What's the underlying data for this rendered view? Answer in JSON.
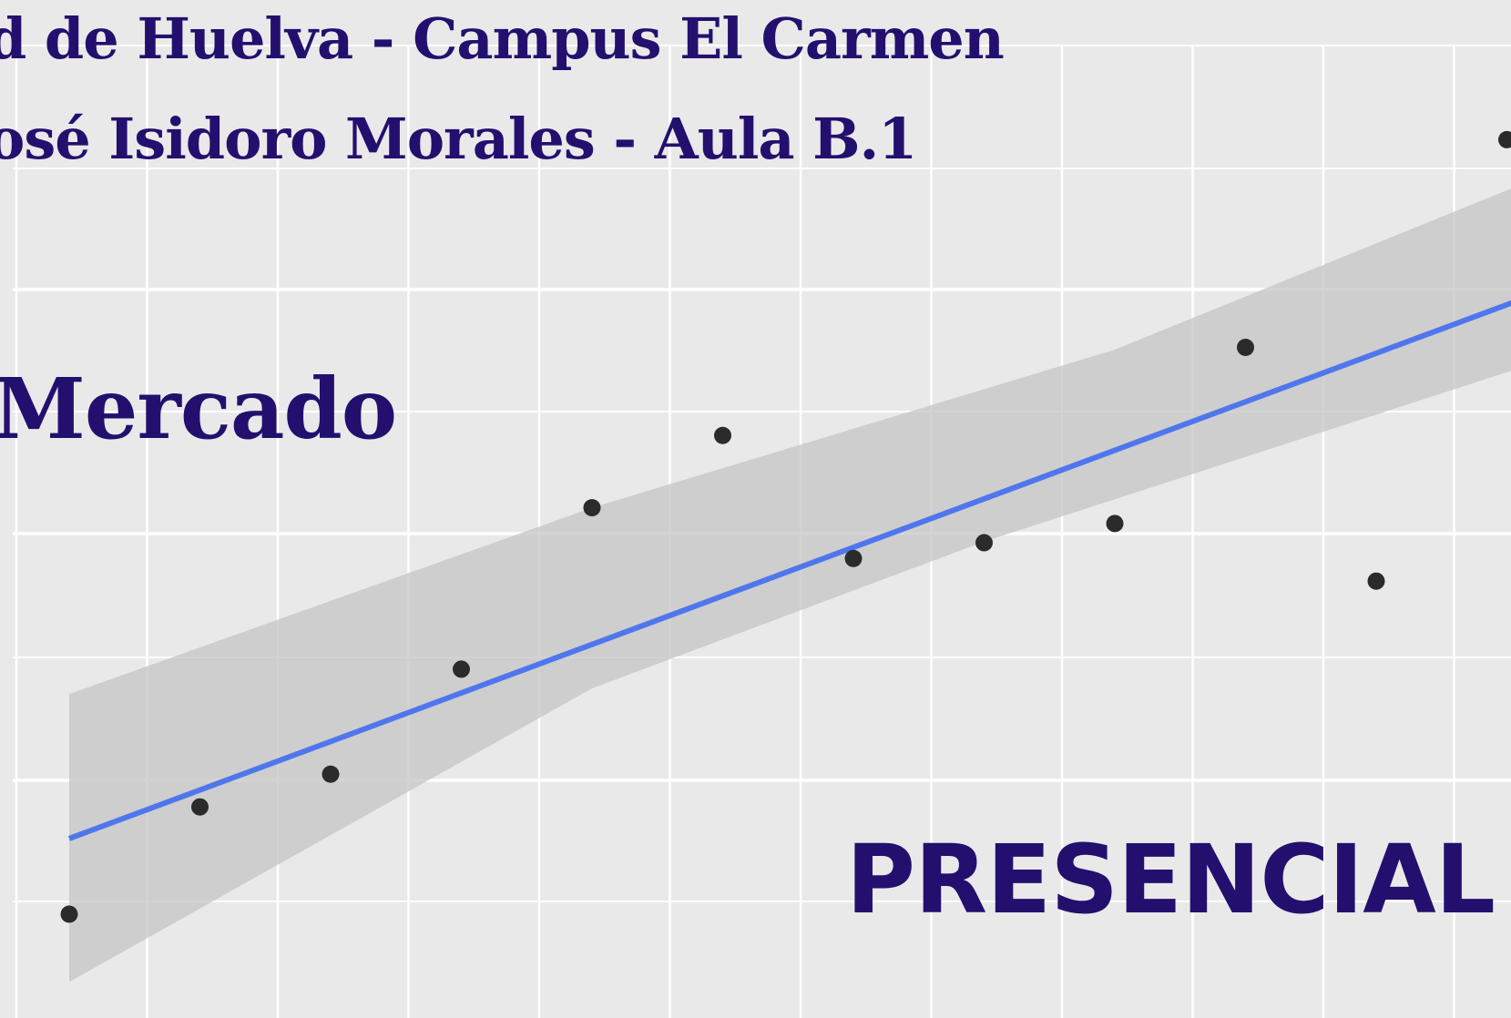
{
  "header": {
    "line1": "d de Huelva - Campus El Carmen",
    "line2": "osé Isidoro Morales - Aula B.1"
  },
  "topic": "Mercado",
  "mode": "PRESENCIAL",
  "colors": {
    "text": "#23106e",
    "fit_line": "#5076ee",
    "confidence_band": "#c4c4c4",
    "points": "#2b2b2b",
    "background": "#e9e9ea",
    "grid": "#ffffff"
  },
  "chart_data": {
    "type": "scatter",
    "x": [
      0,
      1,
      2,
      3,
      4,
      5,
      6,
      7,
      8,
      9,
      10,
      11
    ],
    "values": [
      0.0,
      0.95,
      1.24,
      2.17,
      3.6,
      4.24,
      3.15,
      3.29,
      3.46,
      5.02,
      2.95,
      6.86
    ],
    "trend_line": {
      "x": [
        0,
        11.4
      ],
      "y": [
        0.67,
        5.57
      ]
    },
    "confidence_band": {
      "upper": [
        [
          0,
          1.95
        ],
        [
          4,
          3.6
        ],
        [
          8,
          5.0
        ],
        [
          11.4,
          6.6
        ]
      ],
      "lower": [
        [
          0,
          -0.6
        ],
        [
          4,
          2.0
        ],
        [
          7,
          3.3
        ],
        [
          11.4,
          4.95
        ]
      ]
    },
    "grid": true
  }
}
